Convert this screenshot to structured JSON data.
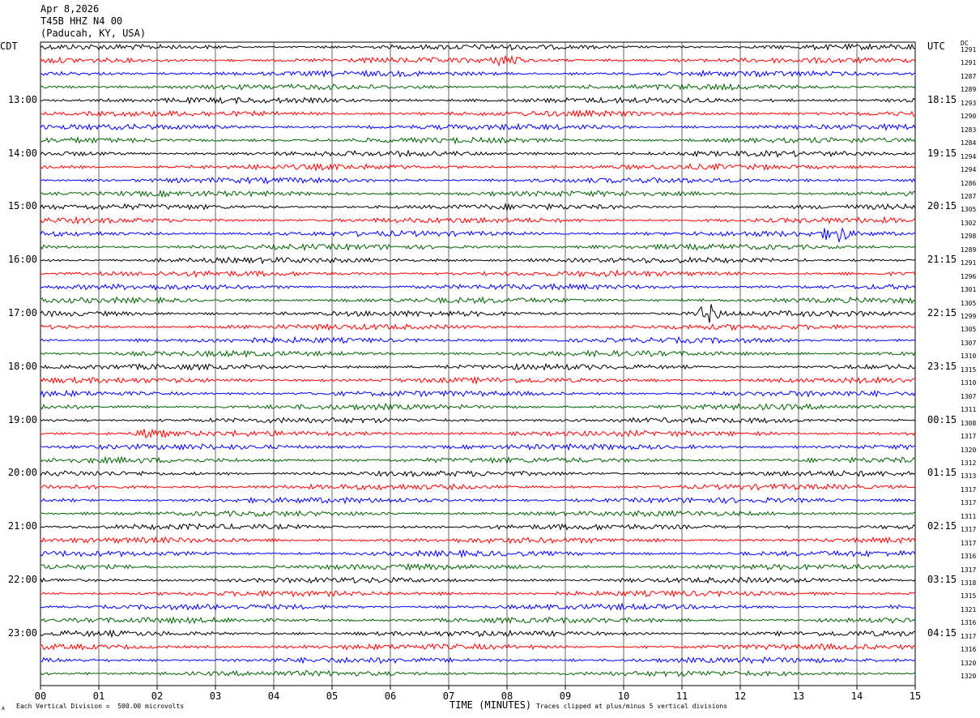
{
  "header": {
    "date": "Apr 8,2026",
    "station": "T45B HHZ N4 00",
    "location": "(Paducah, KY, USA)"
  },
  "axis": {
    "left_tz": "CDT",
    "right_tz": "UTC",
    "dc_label": "DC"
  },
  "chart_data": {
    "type": "line",
    "title": "T45B HHZ N4 00",
    "xlabel": "TIME (MINUTES)",
    "x_ticks": [
      "00",
      "01",
      "02",
      "03",
      "04",
      "05",
      "06",
      "07",
      "08",
      "09",
      "10",
      "11",
      "12",
      "13",
      "14",
      "15"
    ],
    "xlim": [
      0,
      15
    ],
    "trace_count": 48,
    "trace_minutes": 15,
    "trace_colors": [
      "#000000",
      "#ff0000",
      "#0000ff",
      "#006400"
    ],
    "left_hour_labels": [
      "13:00",
      "14:00",
      "15:00",
      "16:00",
      "17:00",
      "18:00",
      "19:00",
      "20:00",
      "21:00",
      "22:00",
      "23:00"
    ],
    "right_hour_labels": [
      "18:15",
      "19:15",
      "20:15",
      "21:15",
      "22:15",
      "23:15",
      "00:15",
      "01:15",
      "02:15",
      "03:15",
      "04:15"
    ],
    "dc_offsets": [
      1291,
      1291,
      1287,
      1289,
      1293,
      1290,
      1283,
      1284,
      1294,
      1294,
      1286,
      1287,
      1305,
      1302,
      1298,
      1289,
      1291,
      1296,
      1301,
      1305,
      1299,
      1305,
      1307,
      1310,
      1315,
      1310,
      1307,
      1311,
      1308,
      1317,
      1320,
      1312,
      1313,
      1317,
      1317,
      1311,
      1317,
      1317,
      1316,
      1317,
      1318,
      1315,
      1321,
      1316,
      1317,
      1316,
      1320,
      1320
    ],
    "events": [
      {
        "trace": 20,
        "minute": 11.45,
        "amplitude": 2.5
      },
      {
        "trace": 14,
        "minute": 13.65,
        "amplitude": 2.2
      },
      {
        "trace": 1,
        "minute": 8.0,
        "amplitude": 1.6
      },
      {
        "trace": 29,
        "minute": 1.9,
        "amplitude": 1.4
      }
    ]
  },
  "footer": {
    "scale": "Each Vertical Division =  500.00 microvolts",
    "clip": "Traces clipped at plus/minus 5 vertical divisions",
    "mark": "A"
  }
}
